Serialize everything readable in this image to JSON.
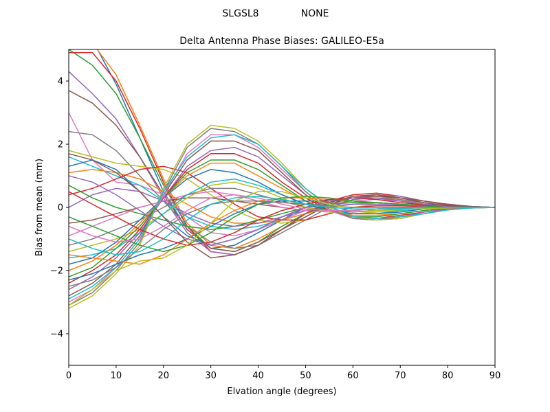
{
  "figure": {
    "suptitle_station": "SLGSL8",
    "suptitle_radome": "NONE"
  },
  "chart_data": {
    "type": "line",
    "title": "Delta Antenna Phase Biases: GALILEO-E5a",
    "xlabel": "Elvation angle (degrees)",
    "ylabel": "Bias from mean (mm)",
    "xlim": [
      0,
      90
    ],
    "ylim": [
      -5,
      5
    ],
    "xticks": [
      0,
      10,
      20,
      30,
      40,
      50,
      60,
      70,
      80,
      90
    ],
    "yticks": [
      -4,
      -2,
      0,
      2,
      4
    ],
    "ytick_labels": [
      "−4",
      "−2",
      "0",
      "2",
      "4"
    ],
    "grid": false,
    "legend": "none",
    "color_cycle": [
      "#1f77b4",
      "#ff7f0e",
      "#2ca02c",
      "#d62728",
      "#9467bd",
      "#8c564b",
      "#e377c2",
      "#7f7f7f",
      "#bcbd22",
      "#17becf"
    ],
    "x": [
      0,
      5,
      10,
      15,
      20,
      25,
      30,
      35,
      40,
      45,
      50,
      55,
      60,
      65,
      70,
      75,
      80,
      85,
      90
    ],
    "series": [
      {
        "values": [
          6.2,
          5.3,
          3.9,
          2.2,
          0.5,
          -0.7,
          -1.3,
          -1.2,
          -0.8,
          -0.4,
          0.0,
          0.2,
          0.3,
          0.3,
          0.2,
          0.1,
          0.05,
          0.02,
          0.0
        ]
      },
      {
        "values": [
          5.5,
          5.2,
          4.2,
          2.6,
          0.9,
          -0.5,
          -1.2,
          -1.3,
          -1.0,
          -0.6,
          -0.2,
          0.1,
          0.3,
          0.35,
          0.25,
          0.1,
          0.05,
          0.02,
          0.0
        ]
      },
      {
        "values": [
          5.0,
          4.5,
          3.6,
          2.2,
          0.7,
          -0.6,
          -1.3,
          -1.4,
          -1.1,
          -0.6,
          -0.2,
          0.15,
          0.35,
          0.4,
          0.3,
          0.15,
          0.05,
          0.02,
          0.0
        ]
      },
      {
        "values": [
          4.9,
          4.9,
          4.0,
          2.5,
          0.8,
          -0.6,
          -1.4,
          -1.5,
          -1.2,
          -0.7,
          -0.2,
          0.2,
          0.4,
          0.45,
          0.35,
          0.2,
          0.08,
          0.03,
          0.0
        ]
      },
      {
        "values": [
          4.3,
          3.6,
          2.8,
          1.6,
          0.3,
          -0.8,
          -1.4,
          -1.5,
          -1.2,
          -0.7,
          -0.3,
          0.1,
          0.3,
          0.4,
          0.35,
          0.2,
          0.1,
          0.03,
          0.0
        ]
      },
      {
        "values": [
          3.7,
          3.3,
          2.6,
          1.6,
          0.4,
          -0.7,
          -1.3,
          -1.4,
          -1.1,
          -0.7,
          -0.3,
          0.1,
          0.3,
          0.35,
          0.3,
          0.2,
          0.1,
          0.03,
          0.0
        ]
      },
      {
        "values": [
          3.0,
          1.5,
          0.8,
          0.7,
          0.4,
          -0.3,
          -0.8,
          -0.9,
          -0.7,
          -0.4,
          -0.1,
          0.1,
          0.2,
          0.25,
          0.2,
          0.1,
          0.05,
          0.02,
          0.0
        ]
      },
      {
        "values": [
          2.4,
          2.3,
          1.8,
          1.0,
          0.2,
          -0.6,
          -1.1,
          -1.3,
          -1.2,
          -0.8,
          -0.4,
          0.0,
          0.25,
          0.3,
          0.25,
          0.15,
          0.05,
          0.02,
          0.0
        ]
      },
      {
        "values": [
          1.8,
          1.6,
          1.4,
          1.3,
          1.2,
          0.9,
          0.4,
          -0.1,
          -0.4,
          -0.5,
          -0.4,
          -0.2,
          0.0,
          0.1,
          0.1,
          0.05,
          0.02,
          0.0,
          0.0
        ]
      },
      {
        "values": [
          1.6,
          1.3,
          1.0,
          0.7,
          0.2,
          -0.3,
          -0.6,
          -0.7,
          -0.6,
          -0.4,
          -0.2,
          0.0,
          0.1,
          0.15,
          0.1,
          0.05,
          0.02,
          0.0,
          0.0
        ]
      },
      {
        "values": [
          1.3,
          1.5,
          1.2,
          0.5,
          -0.3,
          -0.9,
          -1.2,
          -1.0,
          -0.7,
          -0.3,
          0.0,
          0.2,
          0.3,
          0.3,
          0.2,
          0.1,
          0.05,
          0.02,
          0.0
        ]
      },
      {
        "values": [
          1.1,
          1.2,
          1.1,
          0.9,
          0.5,
          0.1,
          -0.3,
          -0.5,
          -0.5,
          -0.4,
          -0.2,
          0.0,
          0.1,
          0.15,
          0.1,
          0.05,
          0.02,
          0.0,
          0.0
        ]
      },
      {
        "values": [
          0.7,
          0.3,
          0.0,
          -0.2,
          -0.4,
          -0.6,
          -0.7,
          -0.6,
          -0.4,
          -0.2,
          0.0,
          0.1,
          0.15,
          0.15,
          0.1,
          0.05,
          0.02,
          0.0,
          0.0
        ]
      },
      {
        "values": [
          0.4,
          0.6,
          0.9,
          1.2,
          1.3,
          1.1,
          0.6,
          0.1,
          -0.3,
          -0.4,
          -0.4,
          -0.2,
          0.0,
          0.05,
          0.05,
          0.03,
          0.01,
          0.0,
          0.0
        ]
      },
      {
        "values": [
          0.0,
          0.4,
          0.6,
          0.5,
          0.2,
          -0.2,
          -0.5,
          -0.6,
          -0.5,
          -0.3,
          -0.1,
          0.05,
          0.1,
          0.1,
          0.08,
          0.04,
          0.02,
          0.0,
          0.0
        ]
      },
      {
        "values": [
          -0.5,
          -0.4,
          -0.2,
          0.0,
          0.2,
          0.3,
          0.3,
          0.2,
          0.1,
          0.0,
          -0.1,
          -0.1,
          -0.1,
          -0.05,
          0.0,
          0.0,
          0.0,
          0.0,
          0.0
        ]
      },
      {
        "values": [
          -0.9,
          -0.6,
          -0.3,
          0.0,
          0.2,
          0.4,
          0.5,
          0.4,
          0.2,
          0.0,
          -0.1,
          -0.15,
          -0.1,
          -0.05,
          0.0,
          0.0,
          0.0,
          0.0,
          0.0
        ]
      },
      {
        "values": [
          -1.2,
          -1.0,
          -0.7,
          -0.4,
          0.0,
          0.4,
          0.6,
          0.6,
          0.4,
          0.2,
          0.0,
          -0.1,
          -0.15,
          -0.1,
          -0.05,
          0.0,
          0.0,
          0.0,
          0.0
        ]
      },
      {
        "values": [
          -1.4,
          -1.2,
          -1.0,
          -0.7,
          -0.2,
          0.3,
          0.7,
          0.8,
          0.6,
          0.3,
          0.0,
          -0.15,
          -0.2,
          -0.15,
          -0.1,
          -0.05,
          0.0,
          0.0,
          0.0
        ]
      },
      {
        "values": [
          -1.6,
          -1.5,
          -1.3,
          -0.8,
          -0.2,
          0.4,
          0.8,
          0.9,
          0.7,
          0.4,
          0.1,
          -0.1,
          -0.2,
          -0.2,
          -0.1,
          -0.05,
          0.0,
          0.0,
          0.0
        ]
      },
      {
        "values": [
          -1.8,
          -1.6,
          -1.1,
          -0.4,
          0.3,
          0.9,
          1.2,
          1.1,
          0.8,
          0.4,
          0.1,
          -0.1,
          -0.2,
          -0.2,
          -0.15,
          -0.05,
          0.0,
          0.0,
          0.0
        ]
      },
      {
        "values": [
          -2.0,
          -1.7,
          -1.2,
          -0.5,
          0.3,
          1.0,
          1.4,
          1.4,
          1.0,
          0.6,
          0.2,
          -0.1,
          -0.25,
          -0.25,
          -0.2,
          -0.1,
          -0.03,
          0.0,
          0.0
        ]
      },
      {
        "values": [
          -2.2,
          -1.9,
          -1.3,
          -0.6,
          0.3,
          1.1,
          1.5,
          1.5,
          1.2,
          0.7,
          0.2,
          -0.1,
          -0.3,
          -0.3,
          -0.2,
          -0.1,
          -0.03,
          0.0,
          0.0
        ]
      },
      {
        "values": [
          -2.4,
          -2.0,
          -1.5,
          -0.7,
          0.3,
          1.2,
          1.7,
          1.7,
          1.4,
          0.8,
          0.3,
          -0.1,
          -0.3,
          -0.35,
          -0.25,
          -0.15,
          -0.05,
          0.0,
          0.0
        ]
      },
      {
        "values": [
          -2.6,
          -2.2,
          -1.6,
          -0.8,
          0.3,
          1.3,
          1.8,
          1.9,
          1.6,
          1.0,
          0.4,
          -0.1,
          -0.35,
          -0.35,
          -0.3,
          -0.15,
          -0.05,
          0.0,
          0.0
        ]
      },
      {
        "values": [
          -2.8,
          -2.4,
          -1.8,
          -0.9,
          0.4,
          1.5,
          2.1,
          2.1,
          1.8,
          1.1,
          0.4,
          -0.1,
          -0.35,
          -0.4,
          -0.3,
          -0.2,
          -0.08,
          0.0,
          0.0
        ]
      },
      {
        "values": [
          -3.0,
          -2.6,
          -1.9,
          -1.0,
          0.4,
          1.7,
          2.3,
          2.3,
          1.9,
          1.2,
          0.5,
          -0.1,
          -0.35,
          -0.4,
          -0.35,
          -0.2,
          -0.08,
          -0.02,
          0.0
        ]
      },
      {
        "values": [
          -3.1,
          -2.7,
          -2.0,
          -1.1,
          0.5,
          1.9,
          2.5,
          2.4,
          2.0,
          1.3,
          0.5,
          -0.05,
          -0.35,
          -0.4,
          -0.35,
          -0.2,
          -0.08,
          -0.02,
          0.0
        ]
      },
      {
        "values": [
          -3.2,
          -2.8,
          -2.1,
          -1.2,
          0.6,
          2.0,
          2.6,
          2.5,
          2.1,
          1.4,
          0.6,
          0.0,
          -0.3,
          -0.4,
          -0.35,
          -0.2,
          -0.08,
          -0.02,
          0.0
        ]
      },
      {
        "values": [
          -2.9,
          -2.5,
          -1.9,
          -1.0,
          0.5,
          1.6,
          2.2,
          2.3,
          2.0,
          1.3,
          0.6,
          0.05,
          -0.3,
          -0.35,
          -0.3,
          -0.2,
          -0.08,
          -0.02,
          0.0
        ]
      },
      {
        "values": [
          -2.3,
          -2.1,
          -1.8,
          -1.5,
          -1.3,
          -1.0,
          -0.6,
          -0.2,
          0.1,
          0.2,
          0.2,
          0.2,
          0.2,
          0.15,
          0.1,
          0.05,
          0.02,
          0.0,
          0.0
        ]
      },
      {
        "values": [
          -1.5,
          -1.6,
          -1.7,
          -1.8,
          -1.5,
          -1.0,
          -0.5,
          -0.1,
          0.2,
          0.3,
          0.3,
          0.25,
          0.2,
          0.15,
          0.1,
          0.05,
          0.02,
          0.0,
          0.0
        ]
      },
      {
        "values": [
          -0.3,
          -0.6,
          -0.9,
          -1.2,
          -1.4,
          -1.2,
          -0.8,
          -0.3,
          0.1,
          0.3,
          0.35,
          0.3,
          0.2,
          0.15,
          0.1,
          0.05,
          0.02,
          0.0,
          0.0
        ]
      },
      {
        "values": [
          0.5,
          0.1,
          -0.3,
          -0.7,
          -1.0,
          -1.2,
          -1.1,
          -0.8,
          -0.4,
          -0.1,
          0.1,
          0.25,
          0.3,
          0.25,
          0.15,
          0.08,
          0.03,
          0.0,
          0.0
        ]
      },
      {
        "values": [
          1.0,
          0.8,
          0.4,
          -0.1,
          -0.6,
          -1.0,
          -1.2,
          -1.0,
          -0.7,
          -0.3,
          0.0,
          0.2,
          0.3,
          0.3,
          0.2,
          0.1,
          0.03,
          0.0,
          0.0
        ]
      },
      {
        "values": [
          1.7,
          1.5,
          1.1,
          0.5,
          -0.3,
          -1.1,
          -1.6,
          -1.5,
          -1.2,
          -0.7,
          -0.2,
          0.15,
          0.35,
          0.4,
          0.3,
          0.15,
          0.05,
          0.02,
          0.0
        ]
      },
      {
        "values": [
          -0.6,
          -0.9,
          -1.1,
          -1.0,
          -0.6,
          -0.1,
          0.3,
          0.4,
          0.3,
          0.1,
          -0.05,
          -0.1,
          -0.1,
          -0.05,
          0.0,
          0.0,
          0.0,
          0.0,
          0.0
        ]
      },
      {
        "values": [
          -2.5,
          -2.3,
          -1.9,
          -1.3,
          -0.7,
          -0.2,
          0.1,
          0.2,
          0.2,
          0.15,
          0.1,
          0.05,
          0.0,
          0.0,
          0.0,
          0.0,
          0.0,
          0.0,
          0.0
        ]
      },
      {
        "values": [
          -3.1,
          -2.6,
          -2.0,
          -1.7,
          -1.6,
          -1.2,
          -0.5,
          0.2,
          0.5,
          0.5,
          0.3,
          0.1,
          -0.05,
          -0.1,
          -0.08,
          -0.04,
          -0.02,
          0.0,
          0.0
        ]
      },
      {
        "values": [
          -1.0,
          -1.3,
          -1.5,
          -1.4,
          -1.0,
          -0.4,
          0.1,
          0.3,
          0.35,
          0.25,
          0.1,
          0.0,
          -0.05,
          -0.05,
          -0.03,
          -0.01,
          0.0,
          0.0,
          0.0
        ]
      }
    ]
  }
}
